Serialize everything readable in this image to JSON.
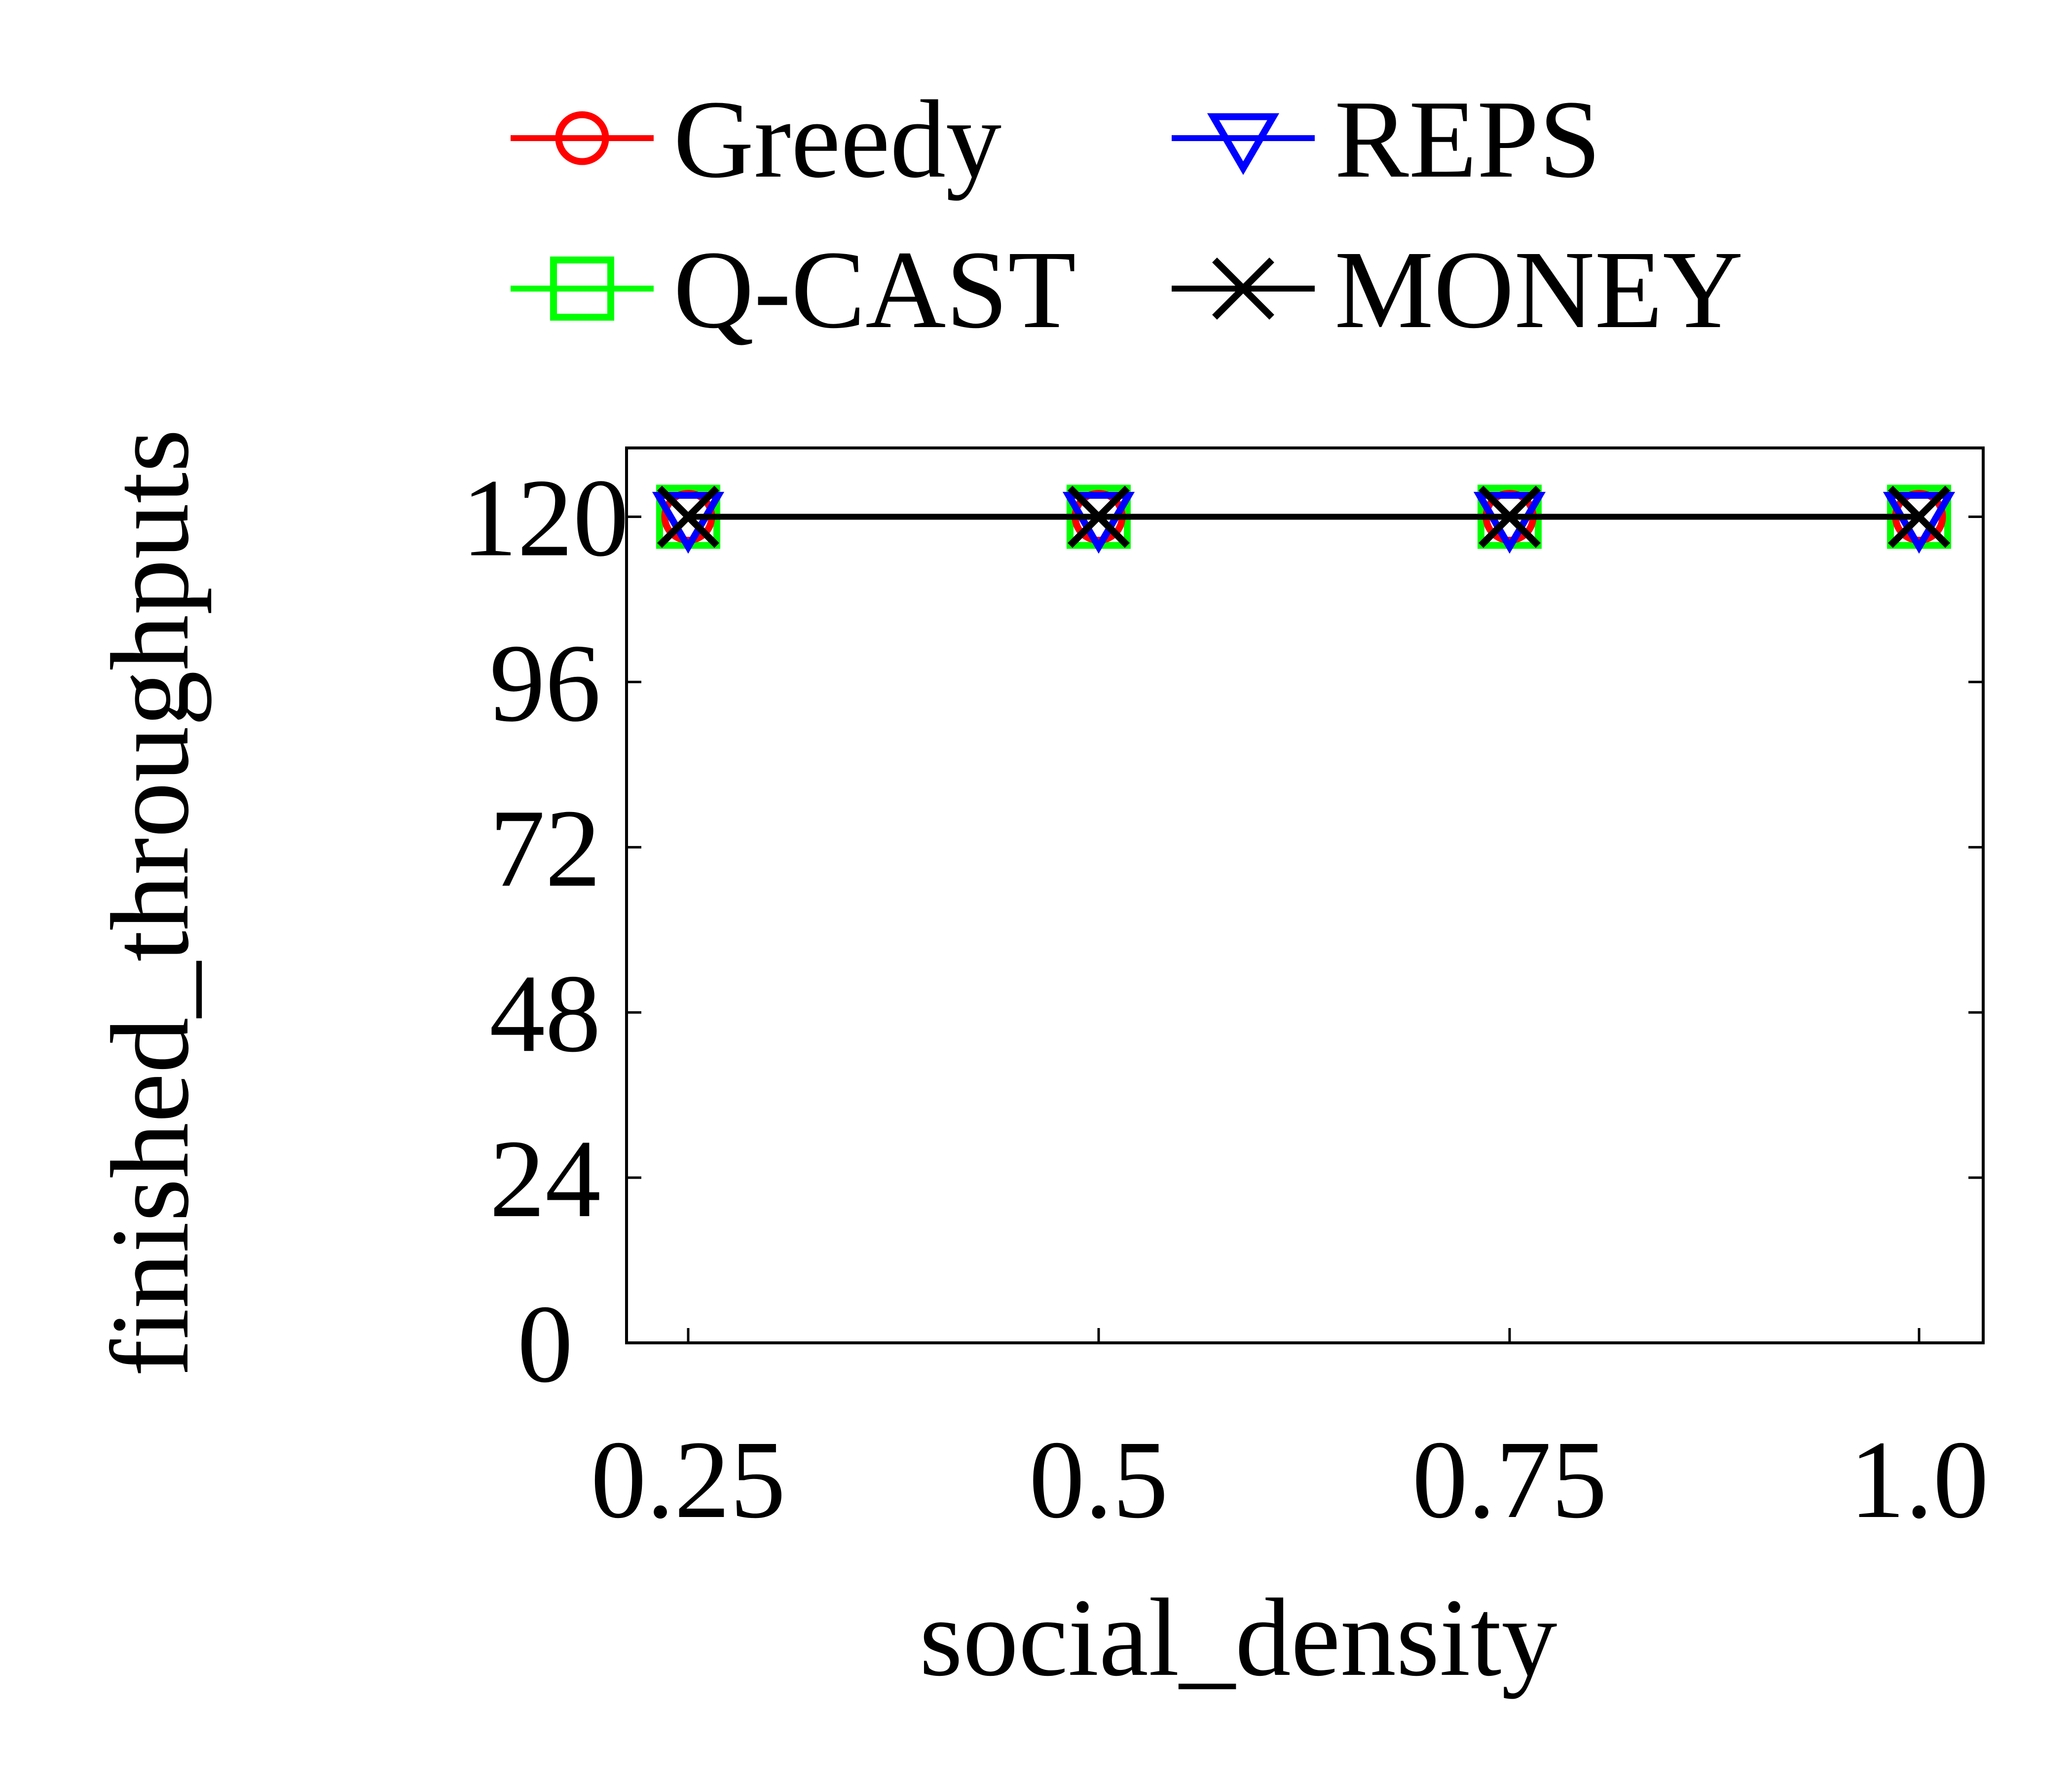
{
  "chart_data": {
    "type": "line",
    "title": "",
    "xlabel": "social_density",
    "ylabel": "finished_throughputs",
    "categories": [
      "0.25",
      "0.5",
      "0.75",
      "1.0"
    ],
    "ylim": [
      0,
      130
    ],
    "yticks": [
      0,
      24,
      48,
      72,
      96,
      120
    ],
    "ytick_labels": [
      "0",
      "24",
      "48",
      "72",
      "96",
      "120"
    ],
    "grid": false,
    "legend_position": "top-center",
    "series": [
      {
        "name": "Greedy",
        "values": [
          120,
          120,
          120,
          120
        ],
        "color": "#ff0000",
        "marker": "circle"
      },
      {
        "name": "REPS",
        "values": [
          120,
          120,
          120,
          120
        ],
        "color": "#0000ff",
        "marker": "triangle-down"
      },
      {
        "name": "Q-CAST",
        "values": [
          120,
          120,
          120,
          120
        ],
        "color": "#00ff00",
        "marker": "square"
      },
      {
        "name": "MONEY",
        "values": [
          120,
          120,
          120,
          120
        ],
        "color": "#000000",
        "marker": "x"
      }
    ]
  }
}
